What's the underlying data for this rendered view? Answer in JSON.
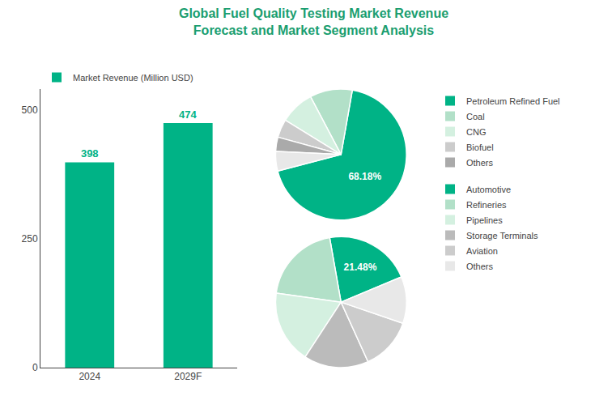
{
  "chart_data": [
    {
      "type": "bar",
      "title": "Global Fuel Quality Testing Market Revenue\nForecast and Market Segment Analysis",
      "categories": [
        "2024",
        "2029F"
      ],
      "series": [
        {
          "name": "Market Revenue (Million USD)",
          "color": "#00b386",
          "values": [
            398,
            474
          ]
        }
      ],
      "ylim": [
        0,
        540
      ],
      "yticks": [
        0,
        250,
        500
      ],
      "grid": false,
      "data_labels": true,
      "legend": "upper left"
    },
    {
      "type": "pie",
      "categories": [
        "Petroleum Refined Fuel",
        "Coal",
        "CNG",
        "Biofuel",
        "Others",
        null
      ],
      "values": [
        68.18,
        10.5,
        8.5,
        4.5,
        3.5,
        4.82
      ],
      "colors": [
        "#00b386",
        "#b2e0c8",
        "#d4f0e0",
        "#cccccc",
        "#aaaaaa",
        "#e8e8e8"
      ],
      "value_labels": [
        "68.18%",
        null,
        null,
        null,
        null,
        null
      ],
      "legend": "right"
    },
    {
      "type": "pie",
      "categories": [
        "Automotive",
        "Refineries",
        "Pipelines",
        "Storage Terminals",
        "Aviation",
        "Others"
      ],
      "values": [
        21.48,
        20.0,
        18.0,
        16.0,
        13.0,
        11.52
      ],
      "colors": [
        "#00b386",
        "#b2e0c8",
        "#d4f0e0",
        "#bbbbbb",
        "#cccccc",
        "#e8e8e8"
      ],
      "value_labels": [
        "21.48%",
        null,
        null,
        null,
        null,
        null
      ],
      "legend": "right"
    }
  ]
}
